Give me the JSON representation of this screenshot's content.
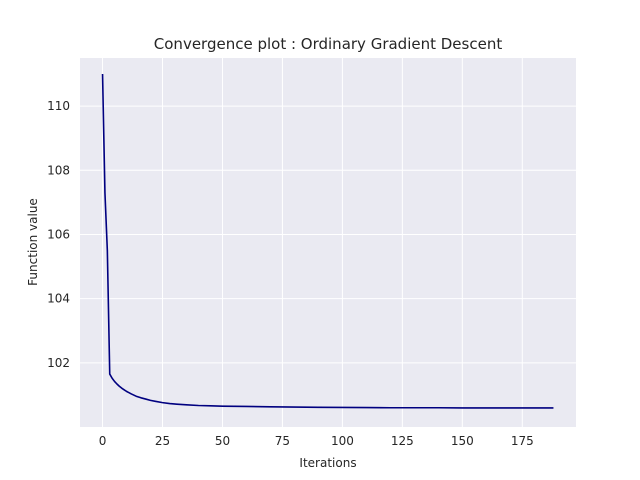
{
  "chart_data": {
    "type": "line",
    "title": "Convergence plot : Ordinary Gradient Descent",
    "xlabel": "Iterations",
    "ylabel": "Function value",
    "xlim": [
      -9.4,
      197.4
    ],
    "ylim": [
      100.0,
      111.5
    ],
    "xticks": [
      0,
      25,
      50,
      75,
      100,
      125,
      150,
      175
    ],
    "yticks": [
      102,
      104,
      106,
      108,
      110
    ],
    "grid": true,
    "colors": {
      "background": "#eaeaf2",
      "grid": "#ffffff",
      "line": "#000080"
    },
    "series": [
      {
        "x": [
          0,
          1,
          2,
          3,
          4,
          5,
          6,
          7,
          8,
          9,
          10,
          12,
          14,
          16,
          18,
          20,
          22,
          25,
          28,
          31,
          35,
          40,
          45,
          50,
          55,
          60,
          70,
          80,
          90,
          100,
          110,
          120,
          130,
          140,
          150,
          160,
          170,
          180,
          188
        ],
        "y": [
          111.0,
          107.3,
          105.5,
          101.65,
          101.52,
          101.42,
          101.34,
          101.27,
          101.21,
          101.16,
          101.11,
          101.03,
          100.96,
          100.91,
          100.87,
          100.83,
          100.8,
          100.76,
          100.73,
          100.71,
          100.69,
          100.67,
          100.66,
          100.65,
          100.645,
          100.64,
          100.63,
          100.62,
          100.615,
          100.61,
          100.605,
          100.6,
          100.6,
          100.6,
          100.595,
          100.595,
          100.595,
          100.595,
          100.595
        ]
      }
    ]
  }
}
